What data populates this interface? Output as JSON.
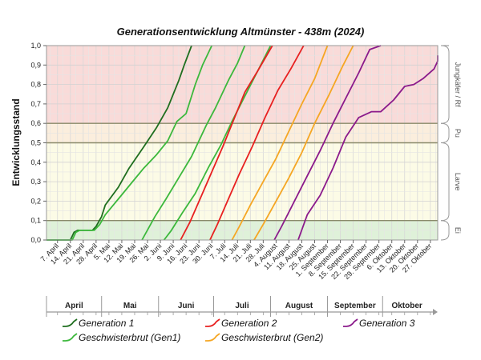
{
  "chart_data": {
    "type": "line",
    "title": "Generationsentwicklung Altmünster - 438m (2024)",
    "ylabel": "Entwicklungsstand",
    "ylim": [
      0,
      1
    ],
    "yticks": [
      "0,0",
      "0,1",
      "0,2",
      "0,3",
      "0,4",
      "0,5",
      "0,6",
      "0,7",
      "0,8",
      "0,9",
      "1,0"
    ],
    "xlim": [
      "2024-04-01",
      "2024-10-31"
    ],
    "xticks": [
      "7. April",
      "14. April",
      "21. April",
      "28. April",
      "5. Mai",
      "12. Mai",
      "19. Mai",
      "26. Mai",
      "2. Juni",
      "9. Juni",
      "16. Juni",
      "23. Juni",
      "30. Juni",
      "7. Juli",
      "14. Juli",
      "21. Juli",
      "28. Juli",
      "4. August",
      "11. August",
      "18. August",
      "25. August",
      "1. September",
      "8. September",
      "15. September",
      "22. September",
      "29. September",
      "6. Oktober",
      "13. Oktober",
      "20. Oktober",
      "27. Oktober"
    ],
    "months": [
      "April",
      "Mai",
      "Juni",
      "Juli",
      "August",
      "September",
      "Oktober"
    ],
    "grid": true,
    "stage_bands": [
      {
        "label": "Jungkäfer / Rf",
        "from": 0.6,
        "to": 1.0,
        "color": "#f9dbd9"
      },
      {
        "label": "Pu",
        "from": 0.5,
        "to": 0.6,
        "color": "#fbeedd"
      },
      {
        "label": "Larve",
        "from": 0.1,
        "to": 0.5,
        "color": "#fcfbe6"
      },
      {
        "label": "Ei",
        "from": 0.0,
        "to": 0.1,
        "color": "#dff1d9"
      }
    ],
    "legend_position": "bottom",
    "series": [
      {
        "name": "Generation 1",
        "color": "#1f6e1f",
        "points": [
          [
            "2024-04-01",
            0
          ],
          [
            "2024-04-14",
            0
          ],
          [
            "2024-04-16",
            0.04
          ],
          [
            "2024-04-18",
            0.05
          ],
          [
            "2024-04-26",
            0.05
          ],
          [
            "2024-04-28",
            0.07
          ],
          [
            "2024-05-01",
            0.12
          ],
          [
            "2024-05-03",
            0.18
          ],
          [
            "2024-05-10",
            0.27
          ],
          [
            "2024-05-16",
            0.37
          ],
          [
            "2024-05-24",
            0.48
          ],
          [
            "2024-05-31",
            0.58
          ],
          [
            "2024-06-06",
            0.68
          ],
          [
            "2024-06-12",
            0.82
          ],
          [
            "2024-06-15",
            0.9
          ],
          [
            "2024-06-19",
            1.0
          ]
        ]
      },
      {
        "name": "Geschwisterbrut (Gen1)",
        "color": "#3cb83c",
        "points": [
          [
            "2024-04-01",
            0
          ],
          [
            "2024-04-15",
            0
          ],
          [
            "2024-04-17",
            0.04
          ],
          [
            "2024-04-19",
            0.05
          ],
          [
            "2024-04-27",
            0.05
          ],
          [
            "2024-04-30",
            0.08
          ],
          [
            "2024-05-03",
            0.13
          ],
          [
            "2024-05-10",
            0.21
          ],
          [
            "2024-05-17",
            0.29
          ],
          [
            "2024-05-24",
            0.37
          ],
          [
            "2024-05-31",
            0.44
          ],
          [
            "2024-06-06",
            0.51
          ],
          [
            "2024-06-11",
            0.61
          ],
          [
            "2024-06-16",
            0.65
          ],
          [
            "2024-06-21",
            0.8
          ],
          [
            "2024-06-25",
            0.9
          ],
          [
            "2024-06-30",
            1.0
          ]
        ]
      },
      {
        "name": "Generation 1",
        "color": "#3cb83c",
        "points": [
          [
            "2024-05-23",
            0
          ],
          [
            "2024-05-30",
            0.12
          ],
          [
            "2024-06-05",
            0.21
          ],
          [
            "2024-06-12",
            0.32
          ],
          [
            "2024-06-19",
            0.43
          ],
          [
            "2024-06-27",
            0.59
          ],
          [
            "2024-07-02",
            0.68
          ],
          [
            "2024-07-09",
            0.82
          ],
          [
            "2024-07-14",
            0.91
          ],
          [
            "2024-07-18",
            1.0
          ]
        ]
      },
      {
        "name": "Geschwisterbrut (Gen1)",
        "color": "#3cb83c",
        "points": [
          [
            "2024-06-04",
            0
          ],
          [
            "2024-06-08",
            0.05
          ],
          [
            "2024-06-14",
            0.14
          ],
          [
            "2024-06-21",
            0.24
          ],
          [
            "2024-06-28",
            0.37
          ],
          [
            "2024-07-05",
            0.49
          ],
          [
            "2024-07-11",
            0.61
          ],
          [
            "2024-07-18",
            0.74
          ],
          [
            "2024-07-25",
            0.87
          ],
          [
            "2024-08-01",
            1.0
          ]
        ]
      },
      {
        "name": "Generation 2",
        "color": "#e82020",
        "points": [
          [
            "2024-06-13",
            0
          ],
          [
            "2024-06-18",
            0.09
          ],
          [
            "2024-06-24",
            0.22
          ],
          [
            "2024-06-30",
            0.35
          ],
          [
            "2024-07-06",
            0.48
          ],
          [
            "2024-07-12",
            0.62
          ],
          [
            "2024-07-18",
            0.76
          ],
          [
            "2024-07-25",
            0.87
          ],
          [
            "2024-08-02",
            1.0
          ]
        ]
      },
      {
        "name": "Generation 2",
        "color": "#e82020",
        "points": [
          [
            "2024-06-29",
            0
          ],
          [
            "2024-07-03",
            0.08
          ],
          [
            "2024-07-09",
            0.21
          ],
          [
            "2024-07-15",
            0.34
          ],
          [
            "2024-07-22",
            0.48
          ],
          [
            "2024-07-29",
            0.63
          ],
          [
            "2024-08-05",
            0.77
          ],
          [
            "2024-08-12",
            0.88
          ],
          [
            "2024-08-19",
            1.0
          ]
        ]
      },
      {
        "name": "Geschwisterbrut (Gen2)",
        "color": "#f5a623",
        "points": [
          [
            "2024-07-11",
            0
          ],
          [
            "2024-07-15",
            0.07
          ],
          [
            "2024-07-21",
            0.18
          ],
          [
            "2024-07-28",
            0.3
          ],
          [
            "2024-08-04",
            0.42
          ],
          [
            "2024-08-11",
            0.56
          ],
          [
            "2024-08-18",
            0.7
          ],
          [
            "2024-08-25",
            0.83
          ],
          [
            "2024-09-01",
            1.0
          ]
        ]
      },
      {
        "name": "Geschwisterbrut (Gen2)",
        "color": "#f5a623",
        "points": [
          [
            "2024-07-23",
            0
          ],
          [
            "2024-07-28",
            0.08
          ],
          [
            "2024-08-04",
            0.2
          ],
          [
            "2024-08-11",
            0.32
          ],
          [
            "2024-08-18",
            0.45
          ],
          [
            "2024-08-25",
            0.6
          ],
          [
            "2024-09-02",
            0.75
          ],
          [
            "2024-09-09",
            0.89
          ],
          [
            "2024-09-15",
            1.0
          ]
        ]
      },
      {
        "name": "Generation 3",
        "color": "#8b1a8b",
        "points": [
          [
            "2024-08-03",
            0
          ],
          [
            "2024-08-07",
            0.07
          ],
          [
            "2024-08-14",
            0.2
          ],
          [
            "2024-08-21",
            0.33
          ],
          [
            "2024-08-28",
            0.46
          ],
          [
            "2024-09-04",
            0.6
          ],
          [
            "2024-09-11",
            0.73
          ],
          [
            "2024-09-18",
            0.86
          ],
          [
            "2024-09-24",
            0.98
          ],
          [
            "2024-09-30",
            1.0
          ]
        ]
      },
      {
        "name": "Generation 3",
        "color": "#8b1a8b",
        "points": [
          [
            "2024-08-16",
            0
          ],
          [
            "2024-08-21",
            0.13
          ],
          [
            "2024-08-28",
            0.23
          ],
          [
            "2024-09-04",
            0.37
          ],
          [
            "2024-09-11",
            0.53
          ],
          [
            "2024-09-18",
            0.63
          ],
          [
            "2024-09-25",
            0.66
          ],
          [
            "2024-09-30",
            0.66
          ],
          [
            "2024-10-07",
            0.72
          ],
          [
            "2024-10-13",
            0.79
          ],
          [
            "2024-10-18",
            0.8
          ],
          [
            "2024-10-23",
            0.83
          ],
          [
            "2024-10-29",
            0.88
          ],
          [
            "2024-11-04",
            0.92
          ],
          [
            "2024-11-12",
            0.95
          ]
        ]
      }
    ]
  },
  "legend": [
    {
      "label": "Generation 1",
      "color": "#1f6e1f"
    },
    {
      "label": "Generation 2",
      "color": "#e82020"
    },
    {
      "label": "Generation 3",
      "color": "#8b1a8b"
    },
    {
      "label": "Geschwisterbrut (Gen1)",
      "color": "#3cb83c"
    },
    {
      "label": "Geschwisterbrut (Gen2)",
      "color": "#f5a623"
    }
  ]
}
